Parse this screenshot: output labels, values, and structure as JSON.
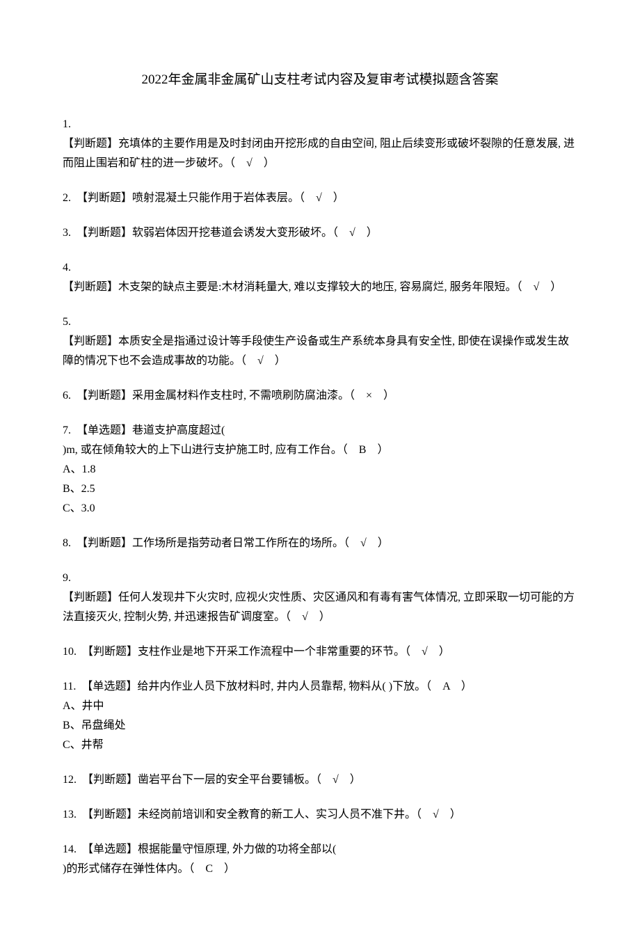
{
  "title": "2022年金属非金属矿山支柱考试内容及复审考试模拟题含答案",
  "questions": [
    {
      "num": "1.",
      "lines": [
        "【判断题】充填体的主要作用是及时封闭由开挖形成的自由空间, 阻止后续变形或破坏裂隙的任意发展, 进而阻止围岩和矿柱的进一步破坏。（　√　）"
      ]
    },
    {
      "num": "2.　",
      "lines": [
        "【判断题】喷射混凝土只能作用于岩体表层。（　√　）"
      ]
    },
    {
      "num": "3.　",
      "lines": [
        "【判断题】软弱岩体因开挖巷道会诱发大变形破坏。（　√　）"
      ]
    },
    {
      "num": "4.",
      "lines": [
        "【判断题】木支架的缺点主要是:木材消耗量大, 难以支撑较大的地压, 容易腐烂, 服务年限短。（　√　）"
      ]
    },
    {
      "num": "5.",
      "lines": [
        "【判断题】本质安全是指通过设计等手段使生产设备或生产系统本身具有安全性, 即使在误操作或发生故障的情况下也不会造成事故的功能。（　√　）"
      ]
    },
    {
      "num": "6.　",
      "lines": [
        "【判断题】采用金属材料作支柱时, 不需喷刷防腐油漆。（　×　）"
      ]
    },
    {
      "num": "7.　",
      "lines": [
        "【单选题】巷道支护高度超过(",
        ")m, 或在倾角较大的上下山进行支护施工时, 应有工作台。（　B　）"
      ],
      "options": [
        "A、1.8",
        "B、2.5",
        "C、3.0"
      ]
    },
    {
      "num": "8.　",
      "lines": [
        "【判断题】工作场所是指劳动者日常工作所在的场所。（　√　）"
      ]
    },
    {
      "num": "9.",
      "lines": [
        "【判断题】任何人发现井下火灾时, 应视火灾性质、灾区通风和有毒有害气体情况, 立即采取一切可能的方法直接灭火, 控制火势, 并迅速报告矿调度室。（　√　）"
      ]
    },
    {
      "num": "10.　",
      "lines": [
        "【判断题】支柱作业是地下开采工作流程中一个非常重要的环节。（　√　）"
      ]
    },
    {
      "num": "11.　",
      "lines": [
        "【单选题】给井内作业人员下放材料时, 井内人员靠帮, 物料从( )下放。（　A　）"
      ],
      "options": [
        "A、井中",
        "B、吊盘绳处",
        "C、井帮"
      ]
    },
    {
      "num": "12.　",
      "lines": [
        "【判断题】凿岩平台下一层的安全平台要铺板。（　√　）"
      ]
    },
    {
      "num": "13.　",
      "lines": [
        "【判断题】未经岗前培训和安全教育的新工人、实习人员不准下井。（　√　）"
      ]
    },
    {
      "num": "14.　",
      "lines": [
        "【单选题】根据能量守恒原理, 外力做的功将全部以(",
        ")的形式储存在弹性体内。（　C　）"
      ]
    }
  ]
}
